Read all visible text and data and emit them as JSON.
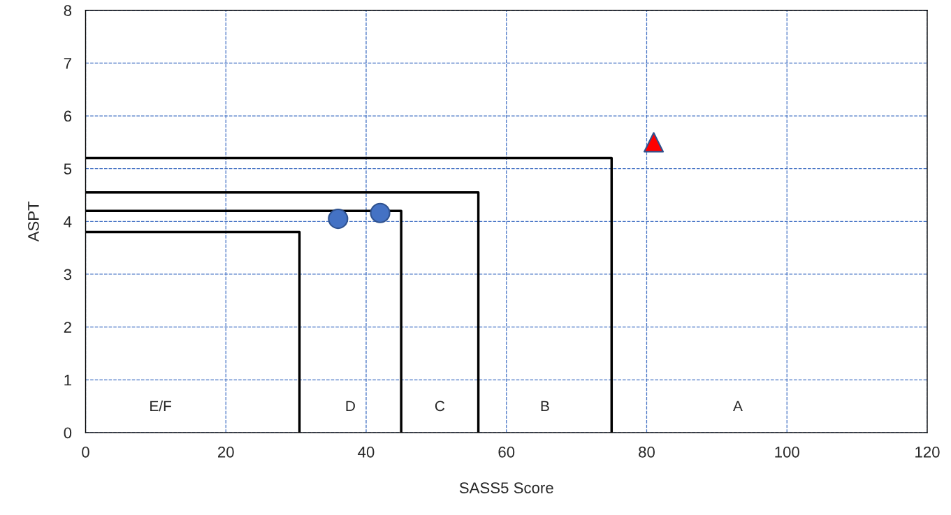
{
  "chart_data": {
    "type": "scatter",
    "xlabel": "SASS5 Score",
    "ylabel": "ASPT",
    "xlim": [
      0,
      120
    ],
    "xticks": [
      0,
      20,
      40,
      60,
      80,
      100,
      120
    ],
    "ylim": [
      0,
      8
    ],
    "yticks": [
      0,
      1,
      2,
      3,
      4,
      5,
      6,
      7,
      8
    ],
    "grid": true,
    "series": [
      {
        "type": "line",
        "color": "#000000",
        "x": [
          0,
          30.5,
          30.5
        ],
        "values": [
          3.8,
          3.8,
          0
        ],
        "marker": "none"
      },
      {
        "type": "line",
        "color": "#000000",
        "x": [
          0,
          45,
          45
        ],
        "values": [
          4.2,
          4.2,
          0
        ],
        "marker": "none"
      },
      {
        "type": "line",
        "color": "#000000",
        "x": [
          0,
          56,
          56
        ],
        "values": [
          4.55,
          4.55,
          0
        ],
        "marker": "none"
      },
      {
        "type": "line",
        "color": "#000000",
        "x": [
          0,
          75,
          75
        ],
        "values": [
          5.2,
          5.2,
          0
        ],
        "marker": "none"
      },
      {
        "color": "#4472c4",
        "x": [
          36,
          42
        ],
        "values": [
          4.05,
          4.16
        ],
        "marker": "circle"
      },
      {
        "color": "#ff0000",
        "x": [
          81
        ],
        "values": [
          5.5
        ],
        "marker": "triangle"
      }
    ],
    "annotations": [
      "E/F",
      "D",
      "C",
      "B",
      "A"
    ]
  }
}
